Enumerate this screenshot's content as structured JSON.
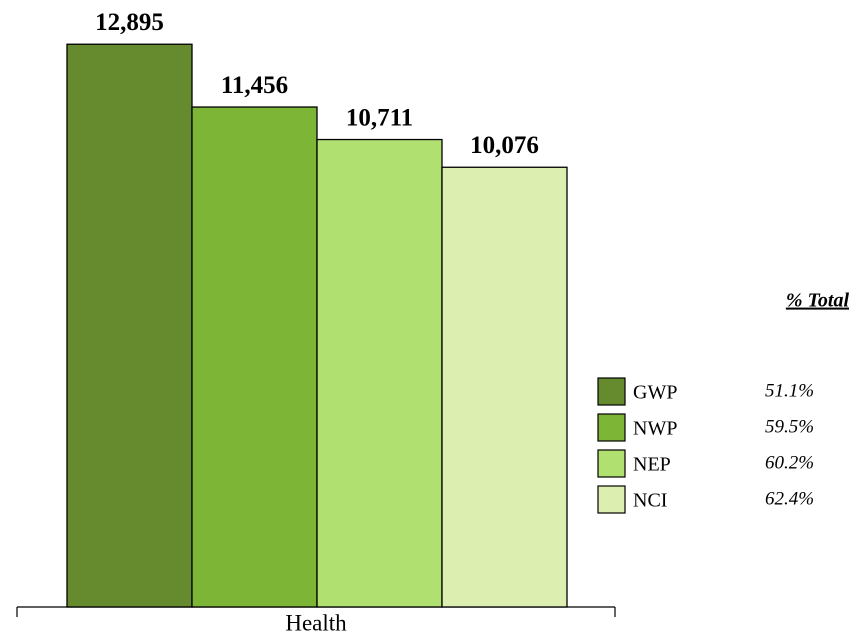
{
  "chart_data": {
    "type": "bar",
    "categories": [
      "Health"
    ],
    "ylim": [
      0,
      14000
    ],
    "legend_title": "% Total",
    "series": [
      {
        "name": "GWP",
        "color": "#668b2e",
        "values": [
          12895
        ],
        "value_labels": [
          "12,895"
        ],
        "share": 51.1,
        "share_label": "51.1%"
      },
      {
        "name": "NWP",
        "color": "#7db536",
        "values": [
          11456
        ],
        "value_labels": [
          "11,456"
        ],
        "share": 59.5,
        "share_label": "59.5%"
      },
      {
        "name": "NEP",
        "color": "#b0e070",
        "values": [
          10711
        ],
        "value_labels": [
          "10,711"
        ],
        "share": 60.2,
        "share_label": "60.2%"
      },
      {
        "name": "NCI",
        "color": "#dcefb0",
        "values": [
          10076
        ],
        "value_labels": [
          "10,076"
        ],
        "share": 62.4,
        "share_label": "62.4%"
      }
    ]
  }
}
